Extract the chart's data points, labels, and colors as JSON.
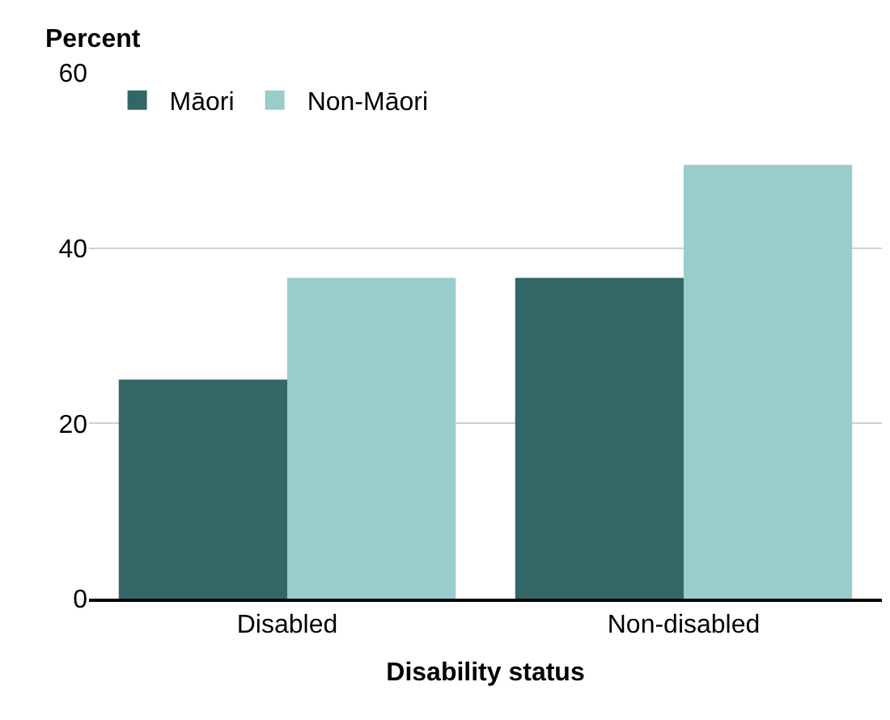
{
  "chart_data": {
    "type": "bar",
    "ylabel": "Percent",
    "xlabel": "Disability status",
    "categories": [
      "Disabled",
      "Non-disabled"
    ],
    "series": [
      {
        "name": "Māori",
        "color": "#336666",
        "values": [
          25,
          36.6
        ]
      },
      {
        "name": "Non-Māori",
        "color": "#99cccc",
        "values": [
          36.6,
          49.5
        ]
      }
    ],
    "ylim": [
      0,
      60
    ],
    "yticks": [
      0,
      20,
      40,
      60
    ],
    "grid": "y",
    "legend": "top left"
  }
}
